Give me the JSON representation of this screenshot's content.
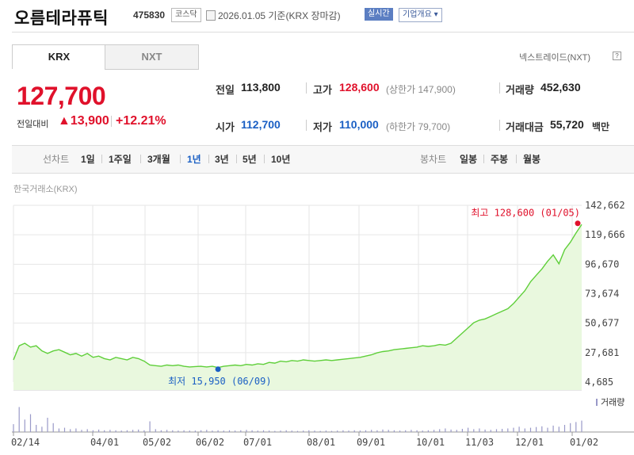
{
  "header": {
    "title": "오름테라퓨틱",
    "code": "475830",
    "market_badge": "코스닥",
    "date": "2026.01.05  기준(KRX 장마감)",
    "realtime": "실시간",
    "company_info": "기업개요 ▾"
  },
  "tabs": {
    "krx": "KRX",
    "nxt": "NXT"
  },
  "nxt_link": "넥스트레이드(NXT)",
  "help_mark": "?",
  "quote": {
    "price": "127,700",
    "change_label": "전일대비",
    "change_value": "▲13,900",
    "change_rate": "+12.21%",
    "prev_close_label": "전일",
    "prev_close": "113,800",
    "open_label": "시가",
    "open": "112,700",
    "high_label": "고가",
    "high": "128,600",
    "high_limit": "(상한가 147,900)",
    "low_label": "저가",
    "low": "110,000",
    "low_limit": "(하한가 79,700)",
    "volume_label": "거래량",
    "volume": "452,630",
    "amount_label": "거래대금",
    "amount": "55,720",
    "amount_unit": "백만"
  },
  "colors": {
    "up": "#e0112b",
    "down": "#1a5fc4",
    "line": "#5fcf3a",
    "fill": "#e9f8de"
  },
  "range_bar": {
    "line_label": "선차트",
    "ranges": [
      "1일",
      "1주일",
      "3개월",
      "1년",
      "3년",
      "5년",
      "10년"
    ],
    "selected": "1년",
    "candle_label": "봉차트",
    "candles": [
      "일봉",
      "주봉",
      "월봉"
    ]
  },
  "source_label": "한국거래소(KRX)",
  "chart_data": {
    "type": "area",
    "y_ticks": [
      "142,662",
      "119,666",
      "96,670",
      "73,674",
      "50,677",
      "27,681",
      "4,685"
    ],
    "ylim": [
      4685,
      142662
    ],
    "x_ticks": [
      "02/14",
      "04/01",
      "05/02",
      "06/02",
      "07/01",
      "08/01",
      "09/01",
      "10/01",
      "11/03",
      "12/01",
      "01/02"
    ],
    "high_label": "최고 128,600 (01/05)",
    "low_label": "최저 15,950 (06/09)",
    "high_value": 128600,
    "low_value": 15950,
    "volume_label": "거래량",
    "series": [
      {
        "values": [
          22000,
          33000,
          35000,
          32000,
          33000,
          29000,
          27000,
          29000,
          30000,
          28000,
          26000,
          27000,
          25000,
          27000,
          24000,
          25000,
          23000,
          22000,
          24000,
          23000,
          22000,
          24000,
          23000,
          21000,
          18000,
          17500,
          17000,
          18000,
          17500,
          18000,
          17000,
          16500,
          16800,
          17000,
          16500,
          17000,
          16000,
          17000,
          17500,
          18000,
          17500,
          18500,
          18000,
          19000,
          18500,
          20000,
          19500,
          21000,
          20500,
          21500,
          21000,
          22000,
          21500,
          21000,
          21500,
          22000,
          21500,
          22000,
          22500,
          23000,
          23500,
          24000,
          25000,
          26000,
          27500,
          28500,
          29000,
          30000,
          30500,
          31000,
          31500,
          32000,
          33000,
          32500,
          33000,
          34000,
          33500,
          35000,
          39000,
          43000,
          47000,
          51000,
          53000,
          54000,
          56000,
          58000,
          60000,
          62000,
          66000,
          71000,
          76000,
          83000,
          88000,
          93000,
          99000,
          104000,
          97000,
          108000,
          113800,
          121000,
          127700
        ]
      }
    ],
    "volume": [
      0.22,
      0.7,
      0.35,
      0.5,
      0.2,
      0.15,
      0.4,
      0.25,
      0.1,
      0.12,
      0.08,
      0.1,
      0.06,
      0.08,
      0.05,
      0.07,
      0.05,
      0.06,
      0.05,
      0.04,
      0.05,
      0.06,
      0.07,
      0.05,
      0.3,
      0.08,
      0.05,
      0.06,
      0.05,
      0.04,
      0.05,
      0.04,
      0.04,
      0.05,
      0.06,
      0.04,
      0.05,
      0.04,
      0.05,
      0.04,
      0.05,
      0.06,
      0.05,
      0.04,
      0.05,
      0.04,
      0.03,
      0.04,
      0.05,
      0.04,
      0.03,
      0.04,
      0.05,
      0.04,
      0.03,
      0.04,
      0.03,
      0.04,
      0.05,
      0.04,
      0.05,
      0.04,
      0.05,
      0.06,
      0.05,
      0.07,
      0.06,
      0.05,
      0.04,
      0.05,
      0.06,
      0.05,
      0.04,
      0.05,
      0.06,
      0.08,
      0.1,
      0.07,
      0.06,
      0.09,
      0.12,
      0.08,
      0.1,
      0.07,
      0.06,
      0.08,
      0.09,
      0.1,
      0.12,
      0.15,
      0.1,
      0.12,
      0.14,
      0.16,
      0.12,
      0.18,
      0.15,
      0.2,
      0.25,
      0.28,
      0.32
    ]
  }
}
